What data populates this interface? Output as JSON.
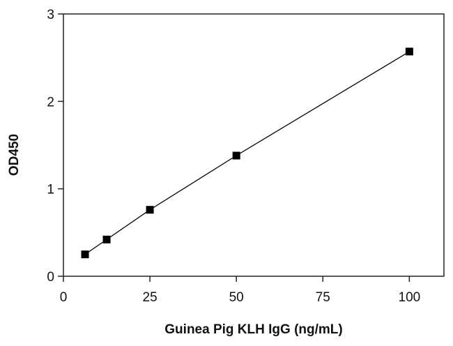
{
  "chart_data": {
    "type": "line",
    "title": "",
    "xlabel": "Guinea Pig KLH IgG (ng/mL)",
    "ylabel": "OD450",
    "xlim": [
      0,
      110
    ],
    "ylim": [
      0,
      3
    ],
    "xticks": [
      0,
      25,
      50,
      75,
      100
    ],
    "yticks": [
      0,
      1,
      2,
      3
    ],
    "grid": false,
    "legend": "none",
    "series": [
      {
        "marker": "square",
        "color": "#000000",
        "points": [
          {
            "x": 6.25,
            "y": 0.25
          },
          {
            "x": 12.5,
            "y": 0.42
          },
          {
            "x": 25,
            "y": 0.76
          },
          {
            "x": 50,
            "y": 1.38
          },
          {
            "x": 100,
            "y": 2.57
          }
        ]
      }
    ]
  }
}
